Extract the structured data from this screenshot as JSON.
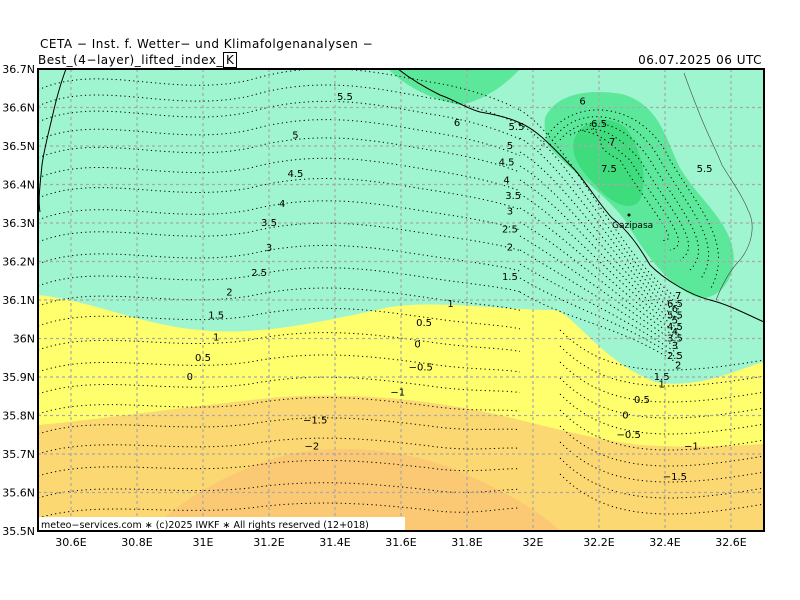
{
  "header": {
    "line1": "CETA − Inst. f. Wetter− und Klimafolgenanalysen −",
    "param": "Best_(4−layer)_lifted_index_",
    "unit": "K",
    "datetime": "06.07.2025 06 UTC"
  },
  "footer": {
    "copyright": "meteo−services.com ∗ (c)2025 IWKF ∗ All rights reserved (12+018)"
  },
  "axes": {
    "lat_labels": [
      "36.7N",
      "36.6N",
      "36.5N",
      "36.4N",
      "36.3N",
      "36.2N",
      "36.1N",
      "36N",
      "35.9N",
      "35.8N",
      "35.7N",
      "35.6N",
      "35.5N"
    ],
    "lon_labels": [
      "30.6E",
      "30.8E",
      "31E",
      "31.2E",
      "31.4E",
      "31.6E",
      "31.8E",
      "32E",
      "32.2E",
      "32.4E",
      "32.6E"
    ]
  },
  "place": {
    "name": "Gazipasa"
  },
  "colors": {
    "cat_1_5": "#9ff5cf",
    "cat_5_7": "#5ce89a",
    "cat_7p": "#3fdc7e",
    "cat_0_1": "#ffff6e",
    "cat_m1_0": "#fcd872",
    "cat_m2_m1": "#fbc873"
  },
  "contour_labels": [
    {
      "t": "5.5",
      "lon": 31.43,
      "lat": 36.627
    },
    {
      "t": "5",
      "lon": 31.28,
      "lat": 36.527
    },
    {
      "t": "4.5",
      "lon": 31.28,
      "lat": 36.427
    },
    {
      "t": "4",
      "lon": 31.24,
      "lat": 36.35
    },
    {
      "t": "3.5",
      "lon": 31.2,
      "lat": 36.3
    },
    {
      "t": "3",
      "lon": 31.2,
      "lat": 36.235
    },
    {
      "t": "2.5",
      "lon": 31.17,
      "lat": 36.17
    },
    {
      "t": "2",
      "lon": 31.08,
      "lat": 36.12
    },
    {
      "t": "1.5",
      "lon": 31.04,
      "lat": 36.06
    },
    {
      "t": "1",
      "lon": 31.04,
      "lat": 36.003
    },
    {
      "t": "0.5",
      "lon": 31.0,
      "lat": 35.95
    },
    {
      "t": "0",
      "lon": 30.96,
      "lat": 35.9
    },
    {
      "t": "6",
      "lon": 31.77,
      "lat": 36.56
    },
    {
      "t": "5.5",
      "lon": 31.95,
      "lat": 36.55
    },
    {
      "t": "5",
      "lon": 31.93,
      "lat": 36.5
    },
    {
      "t": "4.5",
      "lon": 31.92,
      "lat": 36.457
    },
    {
      "t": "4",
      "lon": 31.92,
      "lat": 36.41
    },
    {
      "t": "3.5",
      "lon": 31.94,
      "lat": 36.37
    },
    {
      "t": "3",
      "lon": 31.93,
      "lat": 36.33
    },
    {
      "t": "2.5",
      "lon": 31.93,
      "lat": 36.283
    },
    {
      "t": "2",
      "lon": 31.93,
      "lat": 36.237
    },
    {
      "t": "1.5",
      "lon": 31.93,
      "lat": 36.16
    },
    {
      "t": "1",
      "lon": 31.75,
      "lat": 36.09
    },
    {
      "t": "0.5",
      "lon": 31.67,
      "lat": 36.04
    },
    {
      "t": "0",
      "lon": 31.65,
      "lat": 35.985
    },
    {
      "t": "−0.5",
      "lon": 31.66,
      "lat": 35.925
    },
    {
      "t": "−1",
      "lon": 31.59,
      "lat": 35.86
    },
    {
      "t": "−1.5",
      "lon": 31.34,
      "lat": 35.787
    },
    {
      "t": "−2",
      "lon": 31.33,
      "lat": 35.72
    },
    {
      "t": "6",
      "lon": 32.15,
      "lat": 36.615
    },
    {
      "t": "6.5",
      "lon": 32.2,
      "lat": 36.557
    },
    {
      "t": "7",
      "lon": 32.24,
      "lat": 36.51
    },
    {
      "t": "7.5",
      "lon": 32.23,
      "lat": 36.44
    },
    {
      "t": "5.5",
      "lon": 32.52,
      "lat": 36.44
    },
    {
      "t": "7",
      "lon": 32.44,
      "lat": 36.11
    },
    {
      "t": "6.5",
      "lon": 32.43,
      "lat": 36.09
    },
    {
      "t": "6",
      "lon": 32.43,
      "lat": 36.077
    },
    {
      "t": "5.5",
      "lon": 32.43,
      "lat": 36.06
    },
    {
      "t": "5",
      "lon": 32.43,
      "lat": 36.047
    },
    {
      "t": "4.5",
      "lon": 32.43,
      "lat": 36.03
    },
    {
      "t": "4",
      "lon": 32.43,
      "lat": 36.017
    },
    {
      "t": "3.5",
      "lon": 32.43,
      "lat": 36.0
    },
    {
      "t": "3",
      "lon": 32.43,
      "lat": 35.98
    },
    {
      "t": "2.5",
      "lon": 32.43,
      "lat": 35.955
    },
    {
      "t": "2",
      "lon": 32.44,
      "lat": 35.93
    },
    {
      "t": "1.5",
      "lon": 32.39,
      "lat": 35.9
    },
    {
      "t": "1",
      "lon": 32.39,
      "lat": 35.88
    },
    {
      "t": "0.5",
      "lon": 32.33,
      "lat": 35.84
    },
    {
      "t": "0",
      "lon": 32.28,
      "lat": 35.8
    },
    {
      "t": "−0.5",
      "lon": 32.29,
      "lat": 35.75
    },
    {
      "t": "−1",
      "lon": 32.48,
      "lat": 35.72
    },
    {
      "t": "−1.5",
      "lon": 32.43,
      "lat": 35.64
    }
  ]
}
